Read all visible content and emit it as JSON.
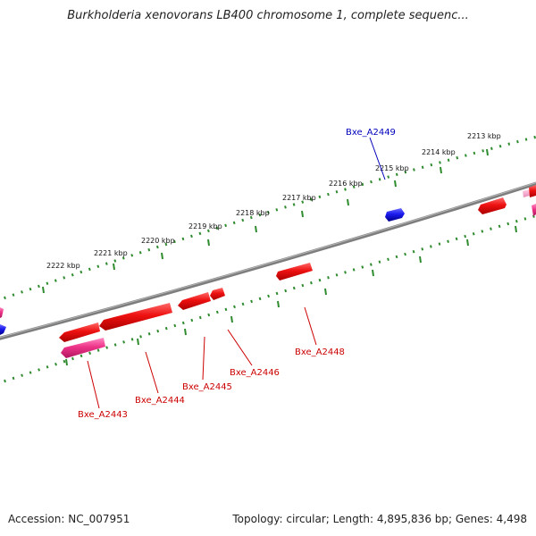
{
  "header": {
    "title": "Burkholderia xenovorans LB400 chromosome 1, complete sequenc..."
  },
  "footer": {
    "accession": "Accession: NC_007951",
    "summary": "Topology: circular; Length: 4,895,836 bp; Genes: 4,498"
  },
  "colors": {
    "backbone": "#808080",
    "tick_track": "#2e8b2e",
    "gene_red": "#ee1111",
    "gene_pink": "#ee3388",
    "gene_blue": "#1a1aee",
    "label_red": "#cc0000",
    "label_blue": "#0000bb"
  },
  "ruler": {
    "unit": "kbp",
    "labels": [
      "2222 kbp",
      "2221 kbp",
      "2220 kbp",
      "2219 kbp",
      "2218 kbp",
      "2217 kbp",
      "2216 kbp",
      "2215 kbp",
      "2214 kbp",
      "2213 kbp"
    ]
  },
  "genes": [
    {
      "locus_tag": "Bxe_A2443",
      "strand": "minus",
      "color": "pink",
      "labeled": true
    },
    {
      "locus_tag": "Bxe_A2444",
      "strand": "plus",
      "color": "red",
      "labeled": true
    },
    {
      "locus_tag": "Bxe_A2445",
      "strand": "plus",
      "color": "red",
      "labeled": true
    },
    {
      "locus_tag": "Bxe_A2446",
      "strand": "plus",
      "color": "red",
      "labeled": true
    },
    {
      "locus_tag": "Bxe_A2448",
      "strand": "plus",
      "color": "red",
      "labeled": true
    },
    {
      "locus_tag": "Bxe_A2449",
      "strand": "plus",
      "color": "blue",
      "labeled": true
    }
  ]
}
